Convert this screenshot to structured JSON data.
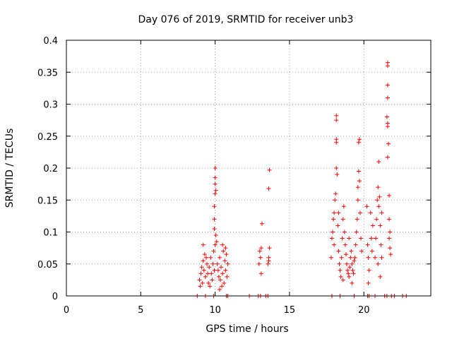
{
  "chart_data": {
    "type": "scatter",
    "title": "Day 076 of 2019, SRMTID for receiver unb3",
    "xlabel": "GPS time / hours",
    "ylabel": "SRMTID / TECUs",
    "xlim": [
      0,
      24.5
    ],
    "ylim": [
      0,
      0.4
    ],
    "xticks": [
      0,
      5,
      10,
      15,
      20
    ],
    "xtick_labels": [
      "0",
      "5",
      "10",
      "15",
      "20"
    ],
    "yticks": [
      0,
      0.05,
      0.1,
      0.15,
      0.2,
      0.25,
      0.3,
      0.35,
      0.4
    ],
    "ytick_labels": [
      "0",
      "0.05",
      "0.1",
      "0.15",
      "0.2",
      "0.25",
      "0.3",
      "0.35",
      "0.4"
    ],
    "grid": true,
    "marker": "+",
    "color": "#ff0000",
    "series": [
      {
        "name": "SRMTID",
        "points": [
          [
            8.8,
            0.0
          ],
          [
            9.35,
            0.0
          ],
          [
            9.9,
            0.0
          ],
          [
            10.75,
            0.0
          ],
          [
            10.85,
            0.0
          ],
          [
            12.3,
            0.0
          ],
          [
            12.9,
            0.0
          ],
          [
            13.05,
            0.0
          ],
          [
            13.4,
            0.0
          ],
          [
            13.55,
            0.0
          ],
          [
            17.85,
            0.0
          ],
          [
            18.4,
            0.0
          ],
          [
            19.35,
            0.0
          ],
          [
            20.25,
            0.0
          ],
          [
            20.35,
            0.0
          ],
          [
            20.75,
            0.0
          ],
          [
            21.4,
            0.0
          ],
          [
            21.55,
            0.0
          ],
          [
            21.85,
            0.0
          ],
          [
            22.05,
            0.0
          ],
          [
            22.6,
            0.0
          ],
          [
            22.85,
            0.0
          ],
          [
            8.95,
            0.025
          ],
          [
            9.05,
            0.035
          ],
          [
            9.1,
            0.045
          ],
          [
            9.15,
            0.02
          ],
          [
            9.2,
            0.055
          ],
          [
            9.25,
            0.04
          ],
          [
            9.3,
            0.065
          ],
          [
            9.35,
            0.03
          ],
          [
            9.45,
            0.05
          ],
          [
            9.55,
            0.02
          ],
          [
            9.6,
            0.045
          ],
          [
            9.7,
            0.06
          ],
          [
            9.75,
            0.035
          ],
          [
            9.8,
            0.025
          ],
          [
            9.85,
            0.05
          ],
          [
            9.9,
            0.07
          ],
          [
            9.95,
            0.04
          ],
          [
            9.0,
            0.015
          ],
          [
            9.2,
            0.08
          ],
          [
            9.4,
            0.06
          ],
          [
            9.65,
            0.015
          ],
          [
            9.5,
            0.035
          ],
          [
            9.95,
            0.12
          ],
          [
            9.95,
            0.14
          ],
          [
            10.0,
            0.16
          ],
          [
            10.0,
            0.175
          ],
          [
            10.0,
            0.185
          ],
          [
            10.0,
            0.2
          ],
          [
            10.05,
            0.165
          ],
          [
            9.95,
            0.105
          ],
          [
            10.05,
            0.095
          ],
          [
            10.1,
            0.085
          ],
          [
            10.0,
            0.08
          ],
          [
            10.15,
            0.05
          ],
          [
            10.2,
            0.04
          ],
          [
            10.25,
            0.03
          ],
          [
            10.3,
            0.06
          ],
          [
            10.35,
            0.025
          ],
          [
            10.4,
            0.045
          ],
          [
            10.45,
            0.015
          ],
          [
            10.5,
            0.035
          ],
          [
            10.55,
            0.07
          ],
          [
            10.6,
            0.02
          ],
          [
            10.65,
            0.055
          ],
          [
            10.7,
            0.04
          ],
          [
            10.75,
            0.065
          ],
          [
            10.8,
            0.03
          ],
          [
            10.85,
            0.05
          ],
          [
            10.3,
            0.01
          ],
          [
            10.5,
            0.08
          ],
          [
            10.7,
            0.075
          ],
          [
            12.95,
            0.05
          ],
          [
            13.0,
            0.07
          ],
          [
            13.1,
            0.075
          ],
          [
            13.1,
            0.035
          ],
          [
            13.15,
            0.113
          ],
          [
            13.05,
            0.06
          ],
          [
            13.6,
            0.055
          ],
          [
            13.6,
            0.06
          ],
          [
            13.65,
            0.075
          ],
          [
            13.6,
            0.168
          ],
          [
            13.65,
            0.197
          ],
          [
            13.55,
            0.05
          ],
          [
            17.8,
            0.06
          ],
          [
            17.85,
            0.09
          ],
          [
            17.9,
            0.1
          ],
          [
            17.95,
            0.12
          ],
          [
            18.0,
            0.13
          ],
          [
            18.05,
            0.15
          ],
          [
            18.0,
            0.08
          ],
          [
            18.1,
            0.16
          ],
          [
            18.15,
            0.2
          ],
          [
            18.15,
            0.24
          ],
          [
            18.15,
            0.245
          ],
          [
            18.15,
            0.275
          ],
          [
            18.15,
            0.282
          ],
          [
            18.2,
            0.19
          ],
          [
            18.25,
            0.11
          ],
          [
            18.3,
            0.07
          ],
          [
            18.35,
            0.05
          ],
          [
            18.4,
            0.04
          ],
          [
            18.45,
            0.03
          ],
          [
            18.5,
            0.06
          ],
          [
            18.55,
            0.09
          ],
          [
            18.6,
            0.12
          ],
          [
            18.65,
            0.14
          ],
          [
            18.7,
            0.1
          ],
          [
            18.75,
            0.08
          ],
          [
            18.8,
            0.065
          ],
          [
            18.85,
            0.05
          ],
          [
            18.9,
            0.04
          ],
          [
            18.95,
            0.035
          ],
          [
            19.0,
            0.03
          ],
          [
            19.05,
            0.045
          ],
          [
            19.1,
            0.06
          ],
          [
            19.15,
            0.07
          ],
          [
            19.2,
            0.05
          ],
          [
            19.25,
            0.04
          ],
          [
            19.3,
            0.035
          ],
          [
            19.35,
            0.055
          ],
          [
            19.4,
            0.06
          ],
          [
            19.45,
            0.08
          ],
          [
            19.5,
            0.1
          ],
          [
            19.55,
            0.12
          ],
          [
            19.6,
            0.15
          ],
          [
            19.6,
            0.17
          ],
          [
            19.65,
            0.195
          ],
          [
            19.65,
            0.24
          ],
          [
            19.7,
            0.245
          ],
          [
            19.7,
            0.18
          ],
          [
            19.75,
            0.13
          ],
          [
            19.8,
            0.09
          ],
          [
            19.85,
            0.07
          ],
          [
            19.2,
            0.02
          ],
          [
            18.6,
            0.025
          ],
          [
            18.3,
            0.13
          ],
          [
            19.0,
            0.09
          ],
          [
            20.2,
            0.14
          ],
          [
            20.25,
            0.08
          ],
          [
            20.3,
            0.06
          ],
          [
            20.35,
            0.04
          ],
          [
            20.3,
            0.02
          ],
          [
            20.45,
            0.13
          ],
          [
            20.5,
            0.09
          ],
          [
            20.55,
            0.07
          ],
          [
            20.6,
            0.11
          ],
          [
            20.75,
            0.06
          ],
          [
            20.8,
            0.09
          ],
          [
            20.85,
            0.12
          ],
          [
            20.9,
            0.15
          ],
          [
            20.95,
            0.17
          ],
          [
            21.0,
            0.21
          ],
          [
            21.0,
            0.14
          ],
          [
            21.05,
            0.155
          ],
          [
            21.1,
            0.11
          ],
          [
            21.15,
            0.08
          ],
          [
            21.2,
            0.06
          ],
          [
            21.1,
            0.03
          ],
          [
            20.95,
            0.05
          ],
          [
            21.2,
            0.13
          ],
          [
            21.6,
            0.365
          ],
          [
            21.6,
            0.36
          ],
          [
            21.6,
            0.33
          ],
          [
            21.6,
            0.31
          ],
          [
            21.55,
            0.28
          ],
          [
            21.6,
            0.27
          ],
          [
            21.6,
            0.265
          ],
          [
            21.65,
            0.238
          ],
          [
            21.6,
            0.217
          ],
          [
            21.7,
            0.157
          ],
          [
            21.7,
            0.12
          ],
          [
            21.75,
            0.1
          ],
          [
            21.7,
            0.09
          ],
          [
            21.75,
            0.075
          ],
          [
            21.8,
            0.065
          ]
        ]
      }
    ]
  }
}
